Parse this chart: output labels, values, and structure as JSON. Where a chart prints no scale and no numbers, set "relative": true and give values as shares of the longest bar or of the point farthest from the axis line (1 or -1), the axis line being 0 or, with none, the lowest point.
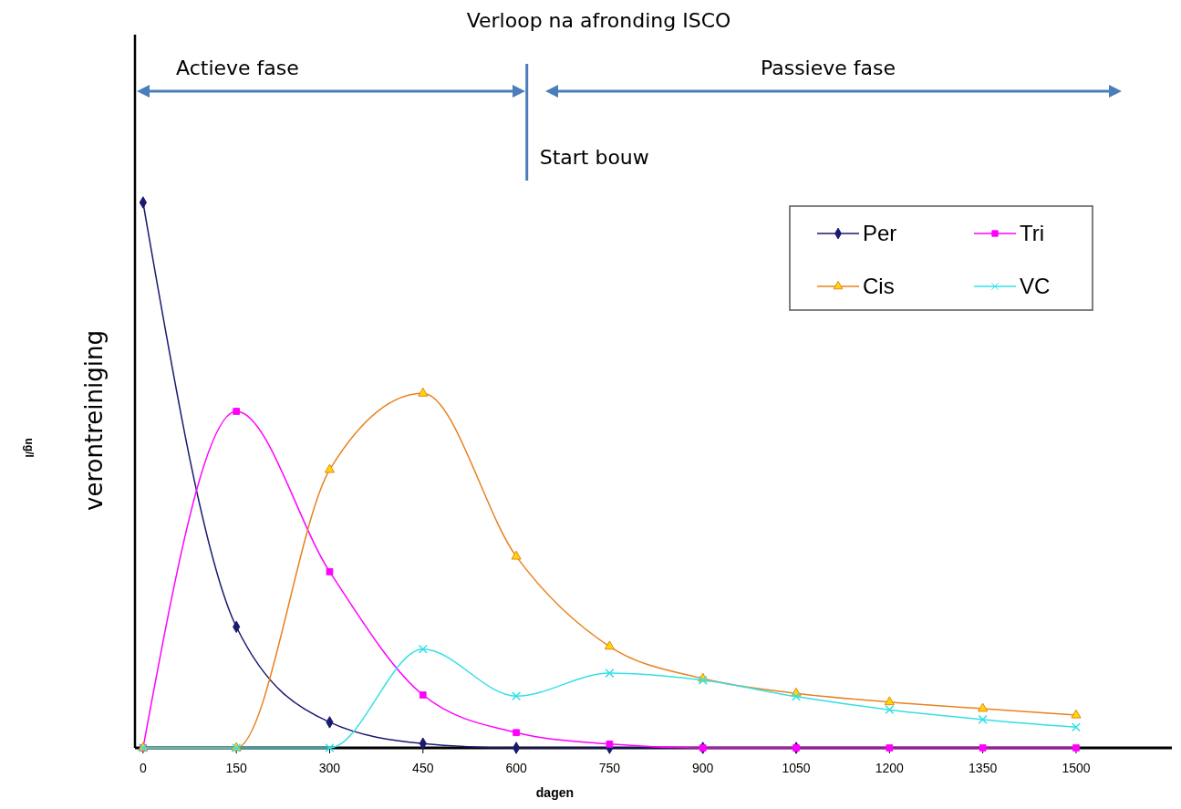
{
  "chart_data": {
    "type": "line",
    "title": "Verloop na afronding ISCO",
    "xlabel": "dagen",
    "ylabel": "verontreiniging",
    "annotations": [
      "ug/l",
      "Actieve fase",
      "Passieve fase"
    ],
    "relative": true,
    "x": [
      0,
      150,
      300,
      450,
      600,
      750,
      900,
      1050,
      1200,
      1350,
      1500
    ],
    "xlim": [
      -13,
      1654
    ],
    "xticks": [
      0,
      150,
      300,
      450,
      600,
      750,
      900,
      1050,
      1200,
      1350,
      1500
    ],
    "series": [
      {
        "name": "Per",
        "color": "#1a1a70",
        "marker": "diamond",
        "values": [
          1,
          0.222,
          0.047,
          0.008,
          0,
          0,
          0,
          0,
          null,
          null,
          null
        ]
      },
      {
        "name": "Tri",
        "color": "#ff00ff",
        "marker": "square",
        "values": [
          0,
          0.617,
          0.323,
          0.097,
          0.028,
          0.007,
          0,
          0,
          0,
          0,
          0
        ]
      },
      {
        "name": "Cis",
        "color": "#e8821e",
        "marker": "triangle",
        "values": [
          0,
          0,
          0.51,
          0.65,
          0.351,
          0.186,
          0.127,
          0.1,
          0.084,
          0.072,
          0.06
        ]
      },
      {
        "name": "VC",
        "color": "#33e0e6",
        "marker": "cross",
        "values": [
          0,
          0,
          0,
          0.181,
          0.095,
          0.137,
          0.124,
          0.094,
          0.07,
          0.052,
          0.038
        ]
      }
    ],
    "ref_lines": [
      {
        "axis": "x",
        "value": 617,
        "label": "Start bouw",
        "color": "#4a7ebb"
      }
    ],
    "legend": "top right",
    "grid": false
  }
}
